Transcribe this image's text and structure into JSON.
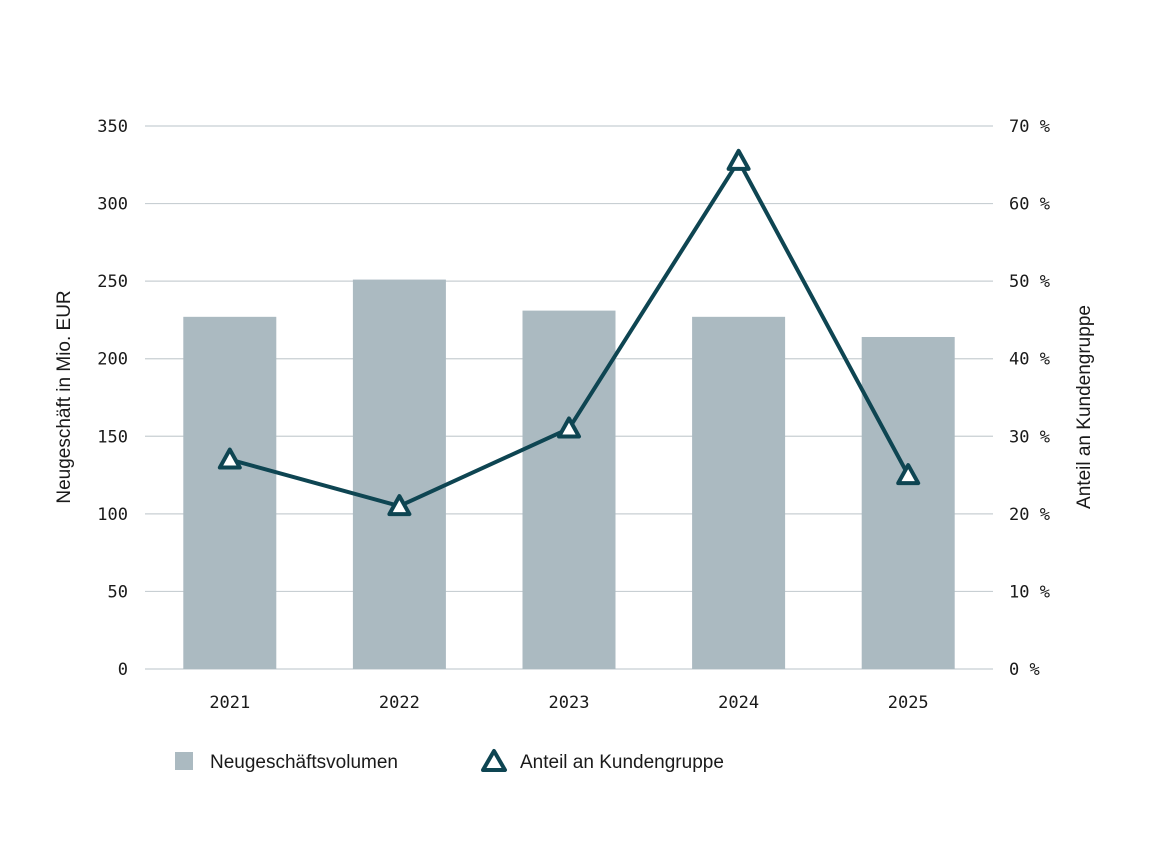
{
  "chart_data": {
    "type": "bar",
    "categories": [
      "2021",
      "2022",
      "2023",
      "2024",
      "2025"
    ],
    "series": [
      {
        "name": "Neugeschäftsvolumen",
        "type": "bar",
        "axis": "left",
        "values": [
          227,
          251,
          231,
          227,
          214
        ]
      },
      {
        "name": "Anteil an Kundengruppe",
        "type": "line",
        "axis": "right",
        "values": [
          27.0,
          21.0,
          31.0,
          65.5,
          25.0
        ]
      }
    ],
    "ylabel": "Neugeschäft in Mio. EUR",
    "ylabel_right": "Anteil an Kundengruppe",
    "ylim": [
      0,
      350
    ],
    "ylim_right": [
      0,
      70
    ],
    "yticks": [
      "0",
      "50",
      "100",
      "150",
      "200",
      "250",
      "300",
      "350"
    ],
    "yticks_right": [
      "0 %",
      "10 %",
      "20 %",
      "30 %",
      "40 %",
      "50 %",
      "60 %",
      "70 %"
    ],
    "grid": true,
    "legend": "bottom-left"
  },
  "colors": {
    "bar": "#abbac1",
    "line": "#0e4552",
    "grid": "#c8cfd3",
    "text": "#1a1a1a"
  }
}
